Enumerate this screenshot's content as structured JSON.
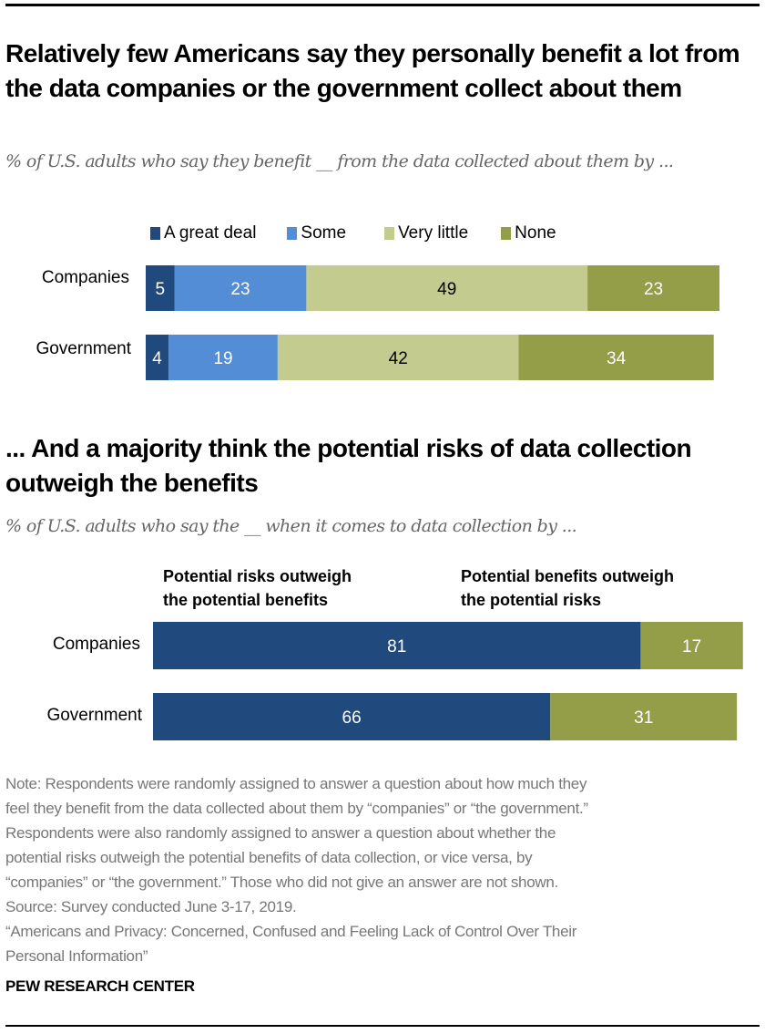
{
  "chart_data": [
    {
      "type": "bar",
      "orientation": "horizontal",
      "stacked": true,
      "title": "Relatively few Americans say they personally benefit a lot from the data companies or the government collect about them",
      "subtitle": "% of U.S. adults who say they benefit __ from the data collected about them by ...",
      "categories": [
        "Companies",
        "Government"
      ],
      "series": [
        {
          "name": "A great deal",
          "color": "#204a7e",
          "label_color": "#ffffff",
          "values": [
            5,
            4
          ]
        },
        {
          "name": "Some",
          "color": "#538dd5",
          "label_color": "#ffffff",
          "values": [
            23,
            19
          ]
        },
        {
          "name": "Very little",
          "color": "#c4cb8f",
          "label_color": "#000000",
          "values": [
            49,
            42
          ]
        },
        {
          "name": "None",
          "color": "#949d48",
          "label_color": "#ffffff",
          "values": [
            23,
            34
          ]
        }
      ],
      "legend": "top",
      "xlim": [
        0,
        100
      ],
      "grid": false
    },
    {
      "type": "bar",
      "orientation": "horizontal",
      "stacked": true,
      "title": "... And a majority think the potential risks of data collection outweigh the benefits",
      "subtitle": "% of U.S. adults who say the __ when it comes to data collection by ...",
      "categories": [
        "Companies",
        "Government"
      ],
      "series": [
        {
          "name": "Potential risks outweigh the potential benefits",
          "name_lines": [
            "Potential risks outweigh",
            "the potential benefits"
          ],
          "color": "#204a7e",
          "label_color": "#ffffff",
          "values": [
            81,
            66
          ]
        },
        {
          "name": "Potential benefits outweigh the potential risks",
          "name_lines": [
            "Potential benefits outweigh",
            "the potential risks"
          ],
          "color": "#949d48",
          "label_color": "#ffffff",
          "values": [
            17,
            31
          ]
        }
      ],
      "legend": "column-headers",
      "xlim": [
        0,
        100
      ],
      "grid": false
    }
  ],
  "notes": [
    "Note: Respondents were randomly assigned to answer a question about how much they",
    "feel they benefit from the data collected about them by “companies” or “the government.”",
    "Respondents were also randomly assigned to answer a question about whether the",
    "potential risks outweigh the potential benefits of data collection, or vice versa, by",
    "“companies” or “the government.” Those who did not give an answer are not shown.",
    "Source: Survey conducted June 3-17, 2019.",
    "“Americans and Privacy: Concerned, Confused and Feeling Lack of Control Over Their",
    "Personal Information”"
  ],
  "brand": "PEW RESEARCH CENTER"
}
